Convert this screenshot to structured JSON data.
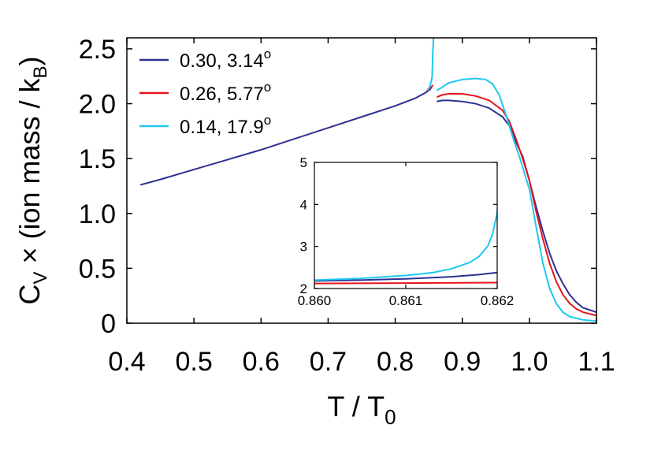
{
  "chart_data": [
    {
      "type": "line",
      "xlabel_parts": [
        "T / T",
        "0"
      ],
      "ylabel_parts": [
        "C",
        "V",
        " × (ion mass / k",
        "B",
        ")"
      ],
      "xlim": [
        0.4,
        1.1
      ],
      "ylim": [
        0,
        2.6
      ],
      "x_ticks": [
        0.4,
        0.5,
        0.6,
        0.7,
        0.8,
        0.9,
        1.0,
        1.1
      ],
      "x_tick_labels": [
        "0.4",
        "0.5",
        "0.6",
        "0.7",
        "0.8",
        "0.9",
        "1.0",
        "1.1"
      ],
      "y_ticks": [
        0,
        0.5,
        1.0,
        1.5,
        2.0,
        2.5
      ],
      "y_tick_labels": [
        "0",
        "0.5",
        "1.0",
        "1.5",
        "2.0",
        "2.5"
      ],
      "grid": false,
      "legend_position": "top-left",
      "series": [
        {
          "name": "0.30, 3.14",
          "name_sup": "o",
          "color": "#2e3192",
          "segments": [
            [
              [
                0.42,
                1.26
              ],
              [
                0.45,
                1.31
              ],
              [
                0.5,
                1.4
              ],
              [
                0.55,
                1.49
              ],
              [
                0.6,
                1.58
              ],
              [
                0.65,
                1.68
              ],
              [
                0.7,
                1.78
              ],
              [
                0.75,
                1.88
              ],
              [
                0.8,
                1.98
              ],
              [
                0.83,
                2.05
              ],
              [
                0.845,
                2.1
              ],
              [
                0.852,
                2.13
              ],
              [
                0.855,
                2.16
              ]
            ],
            [
              [
                0.862,
                2.02
              ],
              [
                0.87,
                2.03
              ],
              [
                0.88,
                2.03
              ],
              [
                0.9,
                2.02
              ],
              [
                0.92,
                2.0
              ],
              [
                0.94,
                1.96
              ],
              [
                0.96,
                1.88
              ],
              [
                0.97,
                1.8
              ],
              [
                0.98,
                1.65
              ],
              [
                0.99,
                1.52
              ],
              [
                1.0,
                1.3
              ],
              [
                1.01,
                1.06
              ],
              [
                1.02,
                0.84
              ],
              [
                1.03,
                0.64
              ],
              [
                1.04,
                0.48
              ],
              [
                1.05,
                0.36
              ],
              [
                1.06,
                0.26
              ],
              [
                1.07,
                0.19
              ],
              [
                1.08,
                0.14
              ],
              [
                1.1,
                0.1
              ]
            ]
          ]
        },
        {
          "name": "0.26, 5.77",
          "name_sup": "o",
          "color": "#e8141b",
          "segments": [
            [
              [
                0.847,
                2.12
              ],
              [
                0.852,
                2.14
              ],
              [
                0.855,
                2.16
              ],
              [
                0.856,
                2.17
              ]
            ],
            [
              [
                0.862,
                2.06
              ],
              [
                0.87,
                2.08
              ],
              [
                0.88,
                2.09
              ],
              [
                0.9,
                2.09
              ],
              [
                0.92,
                2.07
              ],
              [
                0.94,
                2.03
              ],
              [
                0.96,
                1.94
              ],
              [
                0.97,
                1.84
              ],
              [
                0.98,
                1.68
              ],
              [
                0.99,
                1.5
              ],
              [
                1.0,
                1.3
              ],
              [
                1.01,
                1.02
              ],
              [
                1.02,
                0.77
              ],
              [
                1.03,
                0.55
              ],
              [
                1.04,
                0.38
              ],
              [
                1.05,
                0.26
              ],
              [
                1.06,
                0.18
              ],
              [
                1.07,
                0.13
              ],
              [
                1.08,
                0.1
              ],
              [
                1.1,
                0.07
              ]
            ]
          ]
        },
        {
          "name": "0.14, 17.9",
          "name_sup": "o",
          "color": "#1ec8f0",
          "segments": [
            [
              [
                0.848,
                2.12
              ],
              [
                0.852,
                2.16
              ],
              [
                0.855,
                2.24
              ],
              [
                0.856,
                2.45
              ],
              [
                0.857,
                2.6
              ]
            ],
            [
              [
                0.862,
                2.12
              ],
              [
                0.87,
                2.15
              ],
              [
                0.88,
                2.19
              ],
              [
                0.9,
                2.22
              ],
              [
                0.92,
                2.23
              ],
              [
                0.935,
                2.22
              ],
              [
                0.945,
                2.18
              ],
              [
                0.955,
                2.08
              ],
              [
                0.965,
                1.9
              ],
              [
                0.975,
                1.7
              ],
              [
                0.985,
                1.52
              ],
              [
                0.995,
                1.32
              ],
              [
                1.0,
                1.22
              ],
              [
                1.01,
                0.88
              ],
              [
                1.02,
                0.55
              ],
              [
                1.03,
                0.32
              ],
              [
                1.04,
                0.18
              ],
              [
                1.05,
                0.1
              ],
              [
                1.06,
                0.06
              ],
              [
                1.08,
                0.03
              ],
              [
                1.1,
                0.02
              ]
            ]
          ]
        }
      ]
    },
    {
      "type": "line",
      "inset": true,
      "xlim": [
        0.86,
        0.862
      ],
      "ylim": [
        2,
        5
      ],
      "x_ticks": [
        0.86,
        0.861,
        0.862
      ],
      "x_tick_labels": [
        "0.860",
        "0.861",
        "0.862"
      ],
      "y_ticks": [
        2,
        3,
        4,
        5
      ],
      "y_tick_labels": [
        "2",
        "3",
        "4",
        "5"
      ],
      "series": [
        {
          "color": "#2e3192",
          "points": [
            [
              0.86,
              2.18
            ],
            [
              0.8605,
              2.2
            ],
            [
              0.861,
              2.23
            ],
            [
              0.8615,
              2.28
            ],
            [
              0.8618,
              2.33
            ],
            [
              0.862,
              2.38
            ]
          ]
        },
        {
          "color": "#e8141b",
          "points": [
            [
              0.86,
              2.12
            ],
            [
              0.861,
              2.13
            ],
            [
              0.862,
              2.14
            ]
          ]
        },
        {
          "color": "#1ec8f0",
          "points": [
            [
              0.86,
              2.2
            ],
            [
              0.8605,
              2.24
            ],
            [
              0.861,
              2.31
            ],
            [
              0.8613,
              2.38
            ],
            [
              0.8615,
              2.47
            ],
            [
              0.8617,
              2.62
            ],
            [
              0.8618,
              2.76
            ],
            [
              0.8619,
              3.02
            ],
            [
              0.86195,
              3.3
            ],
            [
              0.862,
              3.8
            ],
            [
              0.86202,
              4.4
            ],
            [
              0.86203,
              5.0
            ]
          ]
        }
      ]
    }
  ]
}
